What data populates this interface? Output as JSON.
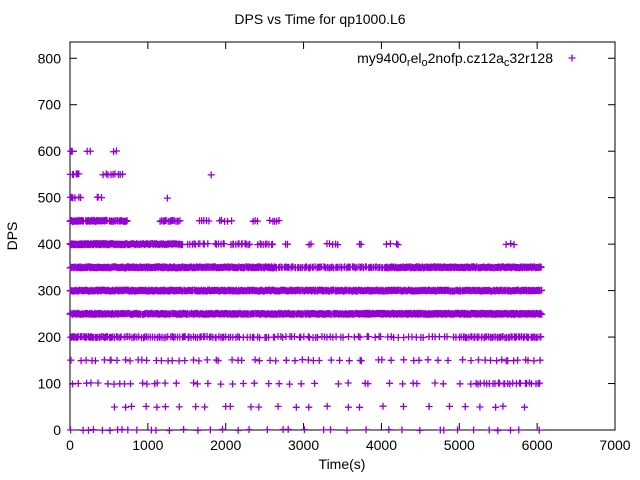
{
  "chart_data": {
    "type": "scatter",
    "title": "DPS vs Time for qp1000.L6",
    "xlabel": "Time(s)",
    "ylabel": "DPS",
    "xlim": [
      0,
      7000
    ],
    "ylim": [
      0,
      835
    ],
    "xticks": [
      0,
      1000,
      2000,
      3000,
      4000,
      5000,
      6000,
      7000
    ],
    "yticks": [
      0,
      100,
      200,
      300,
      400,
      500,
      600,
      700,
      800
    ],
    "grid": false,
    "marker": {
      "shape": "plus",
      "color": "#9400d3",
      "size": 7
    },
    "legend": {
      "position": "top-right",
      "marker": "plus",
      "label_plain": "my9400_rel_o2nofp.cz12a_c32r128",
      "label_segments": [
        {
          "text": "my9400",
          "sub": false
        },
        {
          "text": "r",
          "sub": true
        },
        {
          "text": "el",
          "sub": false
        },
        {
          "text": "o",
          "sub": true
        },
        {
          "text": "2nofp.cz12a",
          "sub": false
        },
        {
          "text": "c",
          "sub": true
        },
        {
          "text": "32r128",
          "sub": false
        }
      ]
    },
    "series": [
      {
        "name": "my9400_rel_o2nofp.cz12a_c32r128",
        "color": "#9400d3",
        "bands": [
          {
            "dps": 600,
            "segments": [
              [
                0,
                40,
                3
              ],
              [
                215,
                265,
                2
              ],
              [
                555,
                605,
                2
              ]
            ]
          },
          {
            "dps": 550,
            "segments": [
              [
                0,
                130,
                6
              ],
              [
                420,
                700,
                9
              ],
              [
                1780,
                1830,
                1
              ]
            ]
          },
          {
            "dps": 500,
            "segments": [
              [
                0,
                70,
                4
              ],
              [
                95,
                140,
                2
              ],
              [
                320,
                430,
                3
              ],
              [
                1240,
                1260,
                1
              ]
            ]
          },
          {
            "dps": 450,
            "segments": [
              [
                0,
                180,
                22
              ],
              [
                200,
                480,
                30
              ],
              [
                500,
                740,
                18
              ],
              [
                1150,
                1420,
                16
              ],
              [
                1650,
                1800,
                5
              ],
              [
                1900,
                2100,
                5
              ],
              [
                2350,
                2430,
                3
              ],
              [
                2550,
                2700,
                5
              ]
            ]
          },
          {
            "dps": 400,
            "segments": [
              [
                0,
                700,
                120
              ],
              [
                700,
                1450,
                70
              ],
              [
                1500,
                1780,
                10
              ],
              [
                1850,
                2000,
                6
              ],
              [
                2050,
                2320,
                12
              ],
              [
                2400,
                2620,
                9
              ],
              [
                2760,
                2800,
                2
              ],
              [
                3060,
                3120,
                2
              ],
              [
                3300,
                3460,
                5
              ],
              [
                3700,
                3760,
                2
              ],
              [
                4050,
                4260,
                4
              ],
              [
                5600,
                5720,
                3
              ]
            ]
          },
          {
            "dps": 350,
            "segments": [
              [
                0,
                1500,
                170
              ],
              [
                1500,
                2650,
                110
              ],
              [
                2650,
                4050,
                80
              ],
              [
                4050,
                6060,
                200
              ]
            ]
          },
          {
            "dps": 300,
            "segments": [
              [
                0,
                700,
                70
              ],
              [
                700,
                1400,
                80
              ],
              [
                1400,
                6060,
                430
              ]
            ]
          },
          {
            "dps": 250,
            "segments": [
              [
                0,
                400,
                40
              ],
              [
                400,
                1000,
                50
              ],
              [
                1000,
                2400,
                130
              ],
              [
                2400,
                3700,
                120
              ],
              [
                3700,
                6060,
                300
              ]
            ]
          },
          {
            "dps": 200,
            "segments": [
              [
                0,
                600,
                40
              ],
              [
                600,
                2100,
                60
              ],
              [
                2100,
                3400,
                35
              ],
              [
                3400,
                5000,
                30
              ],
              [
                5000,
                6060,
                55
              ]
            ]
          },
          {
            "dps": 150,
            "segments": [
              [
                0,
                1500,
                20
              ],
              [
                1500,
                3500,
                20
              ],
              [
                3500,
                5300,
                15
              ],
              [
                5300,
                6060,
                12
              ]
            ]
          },
          {
            "dps": 100,
            "segments": [
              [
                0,
                1200,
                14
              ],
              [
                1200,
                2600,
                10
              ],
              [
                2600,
                4000,
                8
              ],
              [
                4000,
                5200,
                8
              ],
              [
                5200,
                6060,
                25
              ]
            ]
          },
          {
            "dps": 50,
            "segments": [
              [
                450,
                1500,
                7
              ],
              [
                1500,
                2600,
                6
              ],
              [
                2600,
                3600,
                5
              ],
              [
                3600,
                4700,
                4
              ],
              [
                4700,
                5900,
                6
              ]
            ]
          },
          {
            "dps": 0,
            "segments": [
              [
                0,
                900,
                10
              ],
              [
                900,
                2200,
                8
              ],
              [
                2200,
                3500,
                7
              ],
              [
                3500,
                4800,
                6
              ],
              [
                4800,
                6060,
                8
              ]
            ]
          }
        ]
      }
    ]
  },
  "colors": {
    "points": "#9400d3",
    "axis": "#000000",
    "background": "#ffffff"
  }
}
